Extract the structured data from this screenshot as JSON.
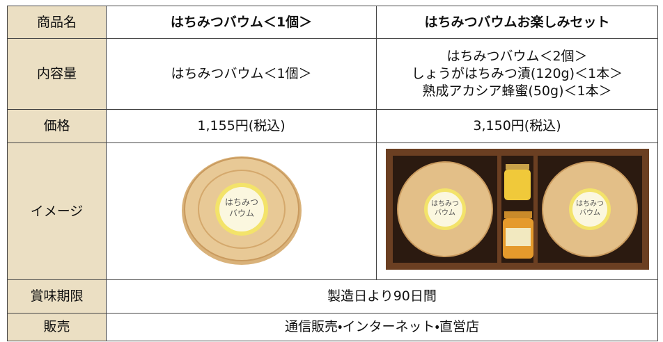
{
  "table": {
    "header": [
      "商品名",
      "はちみつバウム＜1個＞",
      "はちみつバウムお楽しみセット"
    ],
    "rows": [
      [
        "内容量",
        "はちみつバウム＜1個＞",
        [
          "はちみつバウム＜2個＞",
          "しょうがはちみつ漬(120g)＜1本＞",
          "熟成アカシア蜂蜜(50g)＜1本＞"
        ]
      ],
      [
        "価格",
        "1,155円(税込)",
        "3,150円(税込)"
      ],
      [
        "イメージ"
      ],
      [
        "賞味期限",
        "製造日より90日間"
      ],
      [
        "販売",
        "通信販売・インターネット・直営店"
      ]
    ]
  },
  "cake_label": [
    "はちみつ",
    "バウム"
  ]
}
